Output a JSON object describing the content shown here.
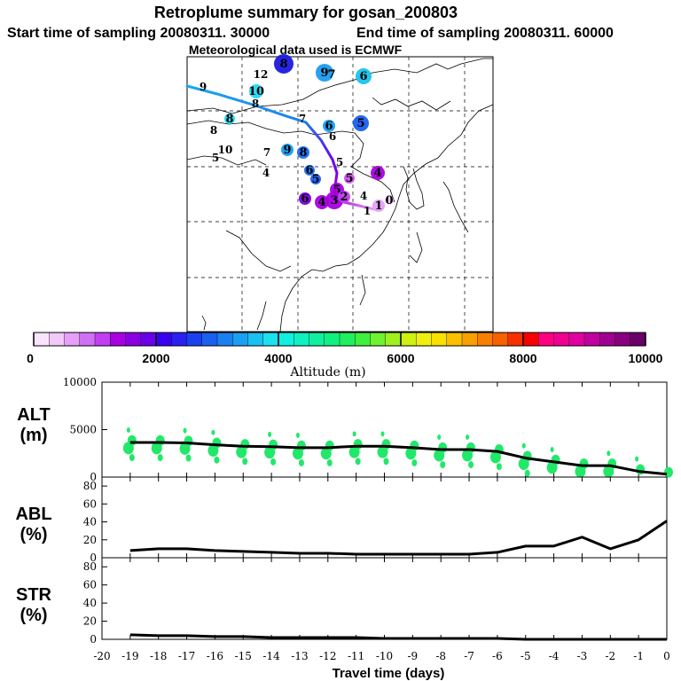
{
  "header": {
    "title": "Retroplume summary for gosan_200803",
    "start": "Start time of sampling 20080311. 30000",
    "end": "End time of sampling 20080311. 60000",
    "met": "Meteorological data used is ECMWF"
  },
  "map": {
    "labels": [
      {
        "text": "12",
        "kind": "plain"
      },
      {
        "text": "8",
        "kind": "dot",
        "color": "#1a1ae0"
      },
      {
        "text": "9",
        "kind": "dot",
        "color": "#1a9cf0"
      },
      {
        "text": "7",
        "kind": "dot",
        "color": "#1a9cf0"
      },
      {
        "text": "6",
        "kind": "dot",
        "color": "#19c4ee"
      },
      {
        "text": "9",
        "kind": "plain"
      },
      {
        "text": "10",
        "kind": "dot",
        "color": "#23d9f2"
      },
      {
        "text": "8",
        "kind": "plain"
      },
      {
        "text": "8",
        "kind": "dot",
        "color": "#23d9f2"
      },
      {
        "text": "8",
        "kind": "plain"
      },
      {
        "text": "7",
        "kind": "plain"
      },
      {
        "text": "6",
        "kind": "dot",
        "color": "#1a9cf0"
      },
      {
        "text": "5",
        "kind": "dot",
        "color": "#1a5ef0"
      },
      {
        "text": "6",
        "kind": "plain"
      },
      {
        "text": "10",
        "kind": "plain"
      },
      {
        "text": "5",
        "kind": "plain"
      },
      {
        "text": "7",
        "kind": "plain"
      },
      {
        "text": "9",
        "kind": "dot",
        "color": "#1a9cf0"
      },
      {
        "text": "8",
        "kind": "dot",
        "color": "#1a6cf0"
      },
      {
        "text": "5",
        "kind": "plain"
      },
      {
        "text": "4",
        "kind": "plain"
      },
      {
        "text": "6",
        "kind": "dot",
        "color": "#1a6cf0"
      },
      {
        "text": "5",
        "kind": "dot",
        "color": "#1a5ef0"
      },
      {
        "text": "4",
        "kind": "dot",
        "color": "#a800e0"
      },
      {
        "text": "5",
        "kind": "dot",
        "color": "#d050f0"
      },
      {
        "text": "5",
        "kind": "dot",
        "color": "#a800e0"
      },
      {
        "text": "4",
        "kind": "plain"
      },
      {
        "text": "6",
        "kind": "dot",
        "color": "#7a00e0"
      },
      {
        "text": "4",
        "kind": "dot",
        "color": "#a800e0"
      },
      {
        "text": "3",
        "kind": "dot",
        "color": "#a800e0"
      },
      {
        "text": "2",
        "kind": "dot",
        "color": "#c040f0"
      },
      {
        "text": "1",
        "kind": "dot",
        "color": "#e6a0f8"
      },
      {
        "text": "0",
        "kind": "dot",
        "color": "#f2c8fa"
      },
      {
        "text": "1",
        "kind": "plain"
      }
    ]
  },
  "colorbar": {
    "ticks": [
      "0",
      "2000",
      "4000",
      "6000",
      "8000",
      "10000"
    ],
    "label": "Altitude (m)",
    "colors": [
      "#f8e4fb",
      "#f2c8fa",
      "#e6a0f8",
      "#d070f4",
      "#c040f0",
      "#a800e0",
      "#8a00e4",
      "#6a00e8",
      "#3a00f0",
      "#2a20f0",
      "#1a40f0",
      "#1a60f0",
      "#1a80f0",
      "#1aa0f0",
      "#1ac0f0",
      "#1ae0f0",
      "#10f0e0",
      "#10f0c0",
      "#10f0a0",
      "#10f080",
      "#20f060",
      "#40f040",
      "#70f030",
      "#a0f020",
      "#d0f010",
      "#f0f010",
      "#f8e000",
      "#f8c000",
      "#f8a000",
      "#f88000",
      "#f86000",
      "#f83000",
      "#f80000",
      "#ff0080",
      "#f00090",
      "#e000a0",
      "#c000a0",
      "#a00090",
      "#880080",
      "#6a0068"
    ]
  },
  "chart_data": [
    {
      "type": "line",
      "panel": "ALT",
      "ylabel": "ALT",
      "yunit": "(m)",
      "ylim": [
        0,
        10000
      ],
      "yticks": [
        "10000",
        "5000",
        "0"
      ],
      "x": [
        -19,
        -18,
        -17,
        -16,
        -15,
        -14,
        -13,
        -12,
        -11,
        -10,
        -9,
        -8,
        -7,
        -6,
        -5,
        -4,
        -3,
        -2,
        -1,
        0
      ],
      "values": [
        3650,
        3650,
        3600,
        3400,
        3250,
        3200,
        3100,
        3100,
        3250,
        3250,
        3100,
        2900,
        2900,
        2700,
        2000,
        1600,
        1200,
        1200,
        600,
        300
      ]
    },
    {
      "type": "line",
      "panel": "ABL",
      "ylabel": "ABL",
      "yunit": "(%)",
      "ylim": [
        0,
        90
      ],
      "yticks": [
        "80",
        "60",
        "40",
        "20",
        "0"
      ],
      "x": [
        -19,
        -18,
        -17,
        -16,
        -15,
        -14,
        -13,
        -12,
        -11,
        -10,
        -9,
        -8,
        -7,
        -6,
        -5,
        -4,
        -3,
        -2,
        -1,
        0
      ],
      "values": [
        8,
        10,
        10,
        8,
        7,
        6,
        5,
        5,
        4,
        4,
        4,
        4,
        4,
        6,
        13,
        13,
        23,
        10,
        20,
        41
      ]
    },
    {
      "type": "line",
      "panel": "STR",
      "ylabel": "STR",
      "yunit": "(%)",
      "ylim": [
        0,
        90
      ],
      "yticks": [
        "80",
        "60",
        "40",
        "20",
        "0"
      ],
      "x": [
        -19,
        -18,
        -17,
        -16,
        -15,
        -14,
        -13,
        -12,
        -11,
        -10,
        -9,
        -8,
        -7,
        -6,
        -5,
        -4,
        -3,
        -2,
        -1,
        0
      ],
      "values": [
        5,
        4,
        4,
        3,
        3,
        2,
        2,
        2,
        2,
        1,
        1,
        1,
        1,
        1,
        0,
        0,
        0,
        0,
        0,
        0
      ],
      "xlabel": "Travel time (days)",
      "xticks": [
        "-20",
        "-19",
        "-18",
        "-17",
        "-16",
        "-15",
        "-14",
        "-13",
        "-12",
        "-11",
        "-10",
        "-9",
        "-8",
        "-7",
        "-6",
        "-5",
        "-4",
        "-3",
        "-2",
        "-1",
        "0"
      ]
    }
  ],
  "clusters": {
    "color": "#22e86a"
  }
}
